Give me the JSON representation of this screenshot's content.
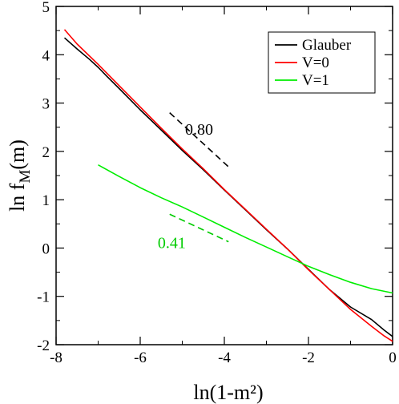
{
  "chart_data": {
    "type": "line",
    "title": "",
    "xlabel": "ln(1-m²)",
    "ylabel": "ln f_M(m)",
    "xlim": [
      -8,
      0
    ],
    "ylim": [
      -2,
      5
    ],
    "xticks": [
      -8,
      -6,
      -4,
      -2,
      0
    ],
    "yticks": [
      -2,
      -1,
      0,
      1,
      2,
      3,
      4,
      5
    ],
    "grid": false,
    "legend_position": "top-right",
    "series": [
      {
        "name": "Glauber",
        "color": "#000000",
        "x": [
          -7.8,
          -7.5,
          -7.2,
          -7.0,
          -6.8,
          -6.5,
          -6.0,
          -5.5,
          -5.0,
          -4.5,
          -4.0,
          -3.5,
          -3.0,
          -2.5,
          -2.0,
          -1.5,
          -1.0,
          -0.5,
          -0.2,
          0.0
        ],
        "y": [
          4.35,
          4.12,
          3.9,
          3.74,
          3.56,
          3.3,
          2.86,
          2.44,
          2.02,
          1.62,
          1.2,
          0.79,
          0.38,
          -0.02,
          -0.44,
          -0.86,
          -1.22,
          -1.48,
          -1.7,
          -1.83
        ]
      },
      {
        "name": "V=0",
        "color": "#ff0000",
        "x": [
          -7.8,
          -7.5,
          -7.0,
          -6.5,
          -6.0,
          -5.5,
          -5.0,
          -4.5,
          -4.0,
          -3.5,
          -3.0,
          -2.5,
          -2.0,
          -1.5,
          -1.0,
          -0.5,
          -0.2,
          0.0
        ],
        "y": [
          4.52,
          4.22,
          3.8,
          3.36,
          2.92,
          2.48,
          2.05,
          1.64,
          1.21,
          0.8,
          0.39,
          -0.02,
          -0.45,
          -0.86,
          -1.27,
          -1.62,
          -1.82,
          -1.93
        ]
      },
      {
        "name": "V=1",
        "color": "#00ee00",
        "x": [
          -7.0,
          -6.5,
          -6.0,
          -5.5,
          -5.0,
          -4.5,
          -4.0,
          -3.5,
          -3.0,
          -2.5,
          -2.0,
          -1.5,
          -1.0,
          -0.5,
          0.0
        ],
        "y": [
          1.72,
          1.48,
          1.25,
          1.04,
          0.85,
          0.64,
          0.43,
          0.22,
          0.02,
          -0.18,
          -0.38,
          -0.55,
          -0.71,
          -0.84,
          -0.93
        ]
      }
    ],
    "annotations": [
      {
        "text": "0.80",
        "color": "#000000",
        "slope": -0.8,
        "x_text": -4.6,
        "y_text": 2.35,
        "line": [
          [
            -5.3,
            2.8
          ],
          [
            -3.9,
            1.68
          ]
        ]
      },
      {
        "text": "0.41",
        "color": "#00cc00",
        "slope": -0.41,
        "x_text": -5.25,
        "y_text": 0.0,
        "line": [
          [
            -5.3,
            0.7
          ],
          [
            -3.9,
            0.13
          ]
        ]
      }
    ]
  }
}
